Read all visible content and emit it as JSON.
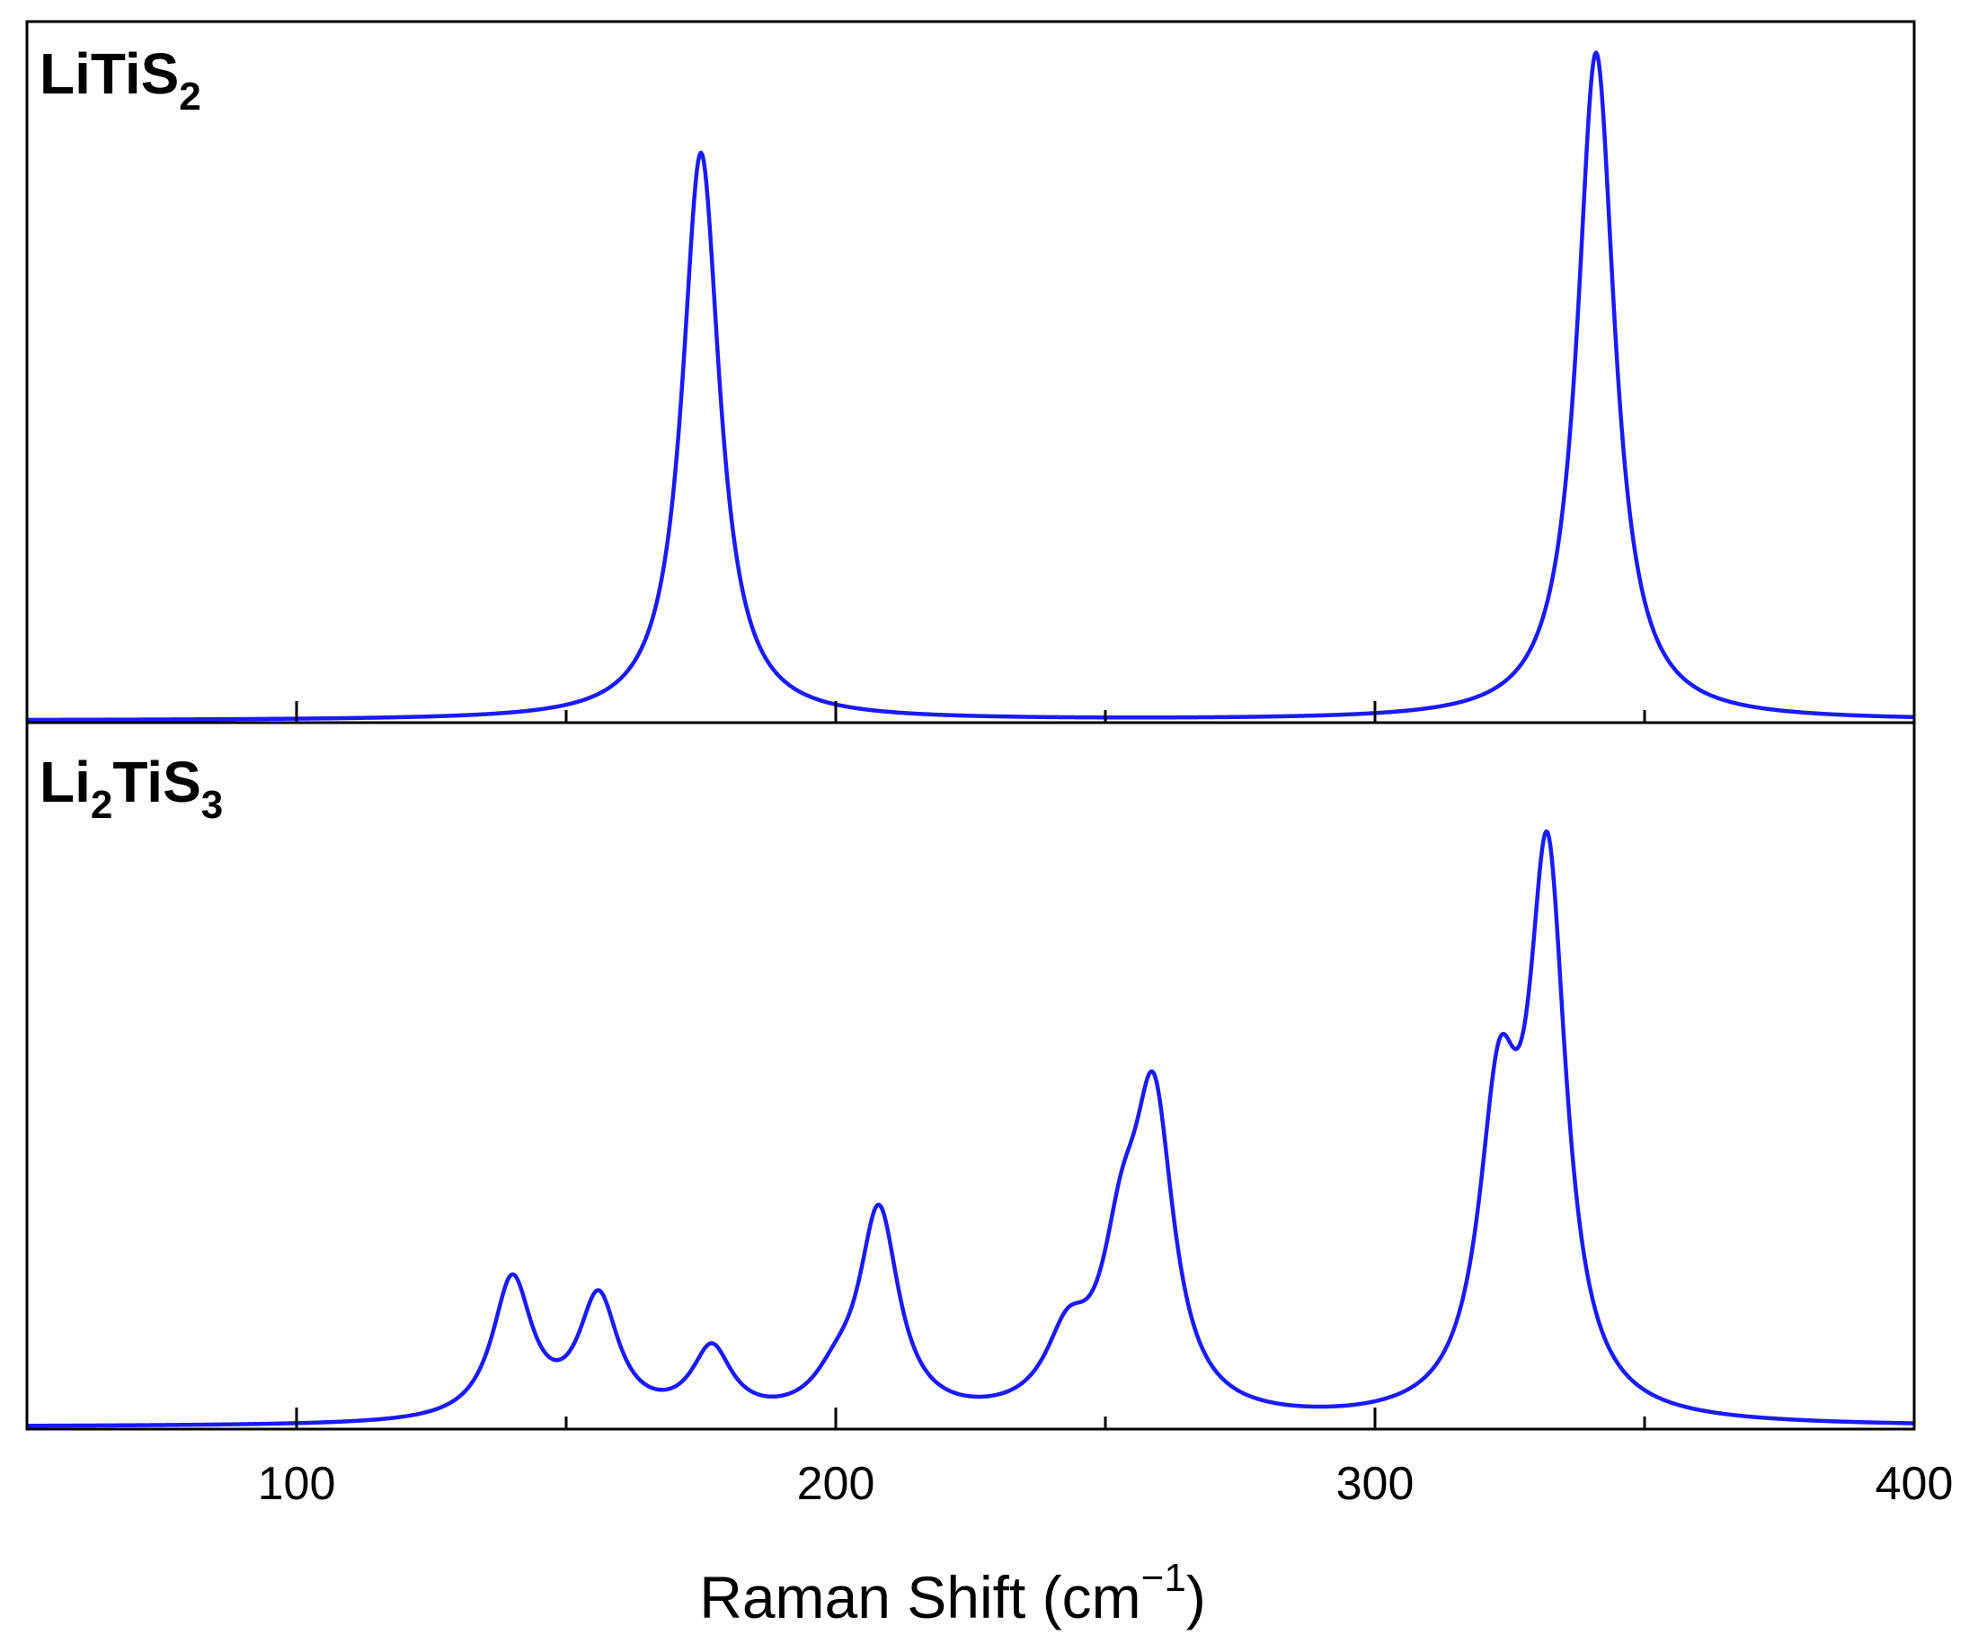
{
  "chart_data": {
    "type": "line",
    "x_range": [
      50,
      400
    ],
    "xlabel_main": "Raman Shift (cm",
    "xlabel_sup": "−1",
    "xlabel_close": ")",
    "x_major_ticks": [
      100,
      200,
      300,
      400
    ],
    "x_minor_ticks": [
      150,
      250,
      350
    ],
    "line_color": "#1a1aff",
    "y_ticks_shown": false,
    "panels": [
      {
        "label_base1": "LiTiS",
        "label_sub1": "2",
        "label_base2": "",
        "label_sub2": "",
        "y_range": [
          0,
          1.05
        ],
        "baseline": 0.003,
        "peaks": [
          {
            "x": 175,
            "height": 0.85,
            "width": 4.2
          },
          {
            "x": 341,
            "height": 1.0,
            "width": 4.2
          }
        ]
      },
      {
        "label_base1": "Li",
        "label_sub1": "2",
        "label_base2": "TiS",
        "label_sub2": "3",
        "y_range": [
          0,
          1.03
        ],
        "baseline": 0.003,
        "peaks": [
          {
            "x": 140,
            "height": 0.205,
            "width": 4.5
          },
          {
            "x": 156,
            "height": 0.175,
            "width": 4.5
          },
          {
            "x": 177,
            "height": 0.1,
            "width": 4.5
          },
          {
            "x": 200,
            "height": 0.04,
            "width": 5
          },
          {
            "x": 208,
            "height": 0.3,
            "width": 4.5
          },
          {
            "x": 243,
            "height": 0.1,
            "width": 5
          },
          {
            "x": 253,
            "height": 0.19,
            "width": 4.5
          },
          {
            "x": 259,
            "height": 0.43,
            "width": 4.5
          },
          {
            "x": 323,
            "height": 0.42,
            "width": 4.5
          },
          {
            "x": 332,
            "height": 0.78,
            "width": 4.2
          }
        ]
      }
    ]
  }
}
